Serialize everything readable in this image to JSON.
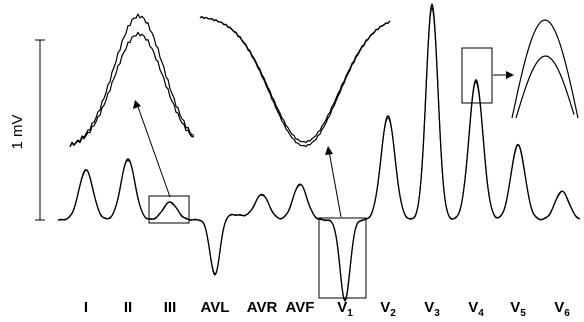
{
  "chart_data": {
    "type": "line",
    "ylabel": "1 mV",
    "leads": [
      {
        "name": "I",
        "main": "I",
        "sub": ""
      },
      {
        "name": "II",
        "main": "II",
        "sub": ""
      },
      {
        "name": "III",
        "main": "III",
        "sub": ""
      },
      {
        "name": "AVL",
        "main": "AVL",
        "sub": ""
      },
      {
        "name": "AVR",
        "main": "AVR",
        "sub": ""
      },
      {
        "name": "AVF",
        "main": "AVF",
        "sub": ""
      },
      {
        "name": "V1",
        "main": "V",
        "sub": "1"
      },
      {
        "name": "V2",
        "main": "V",
        "sub": "2"
      },
      {
        "name": "V3",
        "main": "V",
        "sub": "3"
      },
      {
        "name": "V4",
        "main": "V",
        "sub": "4"
      },
      {
        "name": "V5",
        "main": "V",
        "sub": "5"
      },
      {
        "name": "V6",
        "main": "V",
        "sub": "6"
      }
    ],
    "peaks_mv": [
      0.28,
      0.34,
      0.1,
      -0.32,
      0.14,
      0.2,
      -0.45,
      0.58,
      1.2,
      0.78,
      0.42,
      0.16
    ],
    "scale_bar_mv": 1,
    "insets": [
      {
        "lead": "III",
        "description_shape": "positive peak"
      },
      {
        "lead": "V1",
        "description_shape": "negative trough"
      },
      {
        "lead": "V4",
        "description_shape": "positive peak"
      }
    ]
  }
}
